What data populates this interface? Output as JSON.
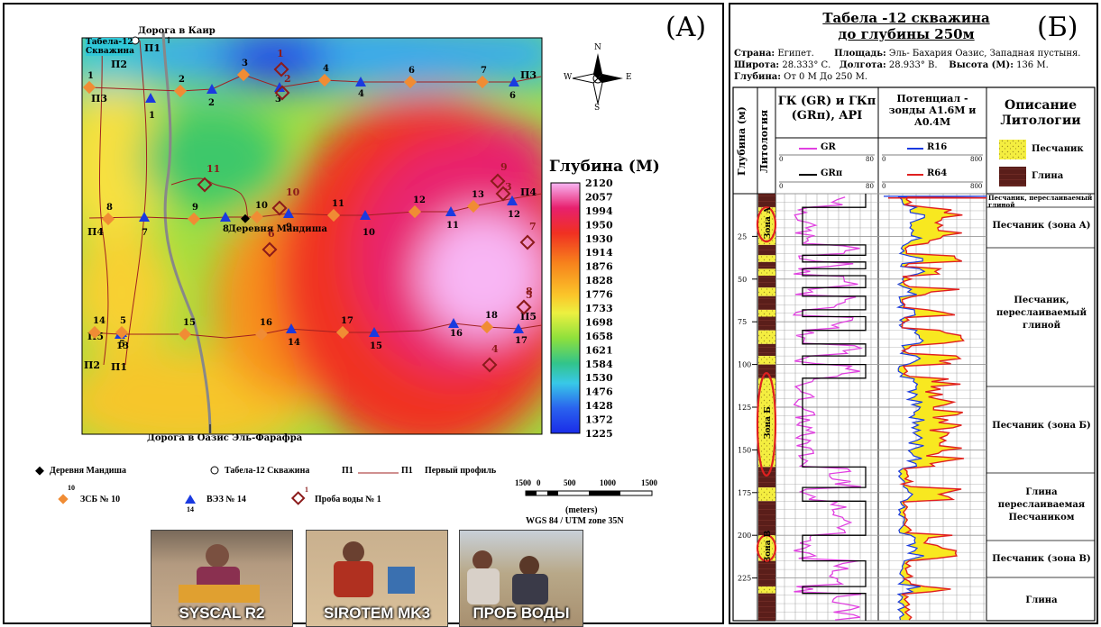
{
  "panel_a": {
    "label": "(A)",
    "road_north": "Дорога в Каир",
    "road_south": "Дорога в Оазис Эль-Фарафра",
    "well_name": "Табела-12 Скважина",
    "village_name": "Деревня Мандиша",
    "compass": {
      "n": "N",
      "s": "S",
      "e": "E",
      "w": "W"
    },
    "colorbar_title": "Глубина (М)",
    "colorbar_ticks": [
      "2120",
      "2057",
      "1994",
      "1950",
      "1930",
      "1914",
      "1876",
      "1828",
      "1776",
      "1733",
      "1698",
      "1658",
      "1621",
      "1584",
      "1530",
      "1476",
      "1428",
      "1372",
      "1225"
    ],
    "colorbar_colors": [
      "#f8b6f4",
      "#f06ad8",
      "#e8206e",
      "#f03022",
      "#f45a1e",
      "#f7821c",
      "#f9a81e",
      "#fbc62a",
      "#f8e03a",
      "#ecf040",
      "#c4ec3a",
      "#8ee03c",
      "#52d24a",
      "#32c48a",
      "#30c4c2",
      "#38c8e8",
      "#42a6f2",
      "#2a62ee",
      "#1a2ce8"
    ],
    "profiles": [
      "П1",
      "П2",
      "П3",
      "П4",
      "П5",
      "П1",
      "П2",
      "П3",
      "П4",
      "П5"
    ],
    "vez_labels": [
      "1",
      "2",
      "3",
      "4",
      "5",
      "6",
      "7",
      "8",
      "9",
      "10",
      "11",
      "12",
      "13",
      "14",
      "15",
      "16",
      "17"
    ],
    "zsb_labels": [
      "1",
      "2",
      "3",
      "4",
      "5",
      "6",
      "7",
      "8",
      "9",
      "10",
      "11",
      "12",
      "13",
      "14",
      "15",
      "16",
      "17",
      "18"
    ],
    "water_labels": [
      "1",
      "2",
      "3",
      "4",
      "5",
      "6",
      "7",
      "8",
      "9",
      "10",
      "11"
    ],
    "legend": {
      "village": "Деревня Мандиша",
      "well": "Табела-12 Скважина",
      "profile_start": "П1",
      "profile_end": "П1",
      "profile_text": "Первый профиль",
      "zsb_num": "10",
      "zsb_text": "ЗСБ № 10",
      "vez_num": "14",
      "vez_text": "ВЭЗ № 14",
      "water_num": "1",
      "water_text": "Проба воды № 1"
    },
    "scale": {
      "ticks": [
        "1500",
        "0",
        "500",
        "1000",
        "1500"
      ],
      "unit": "(meters)",
      "datum": "WGS 84 / UTM zone 35N"
    },
    "photos": [
      "SYSCAL R2",
      "SIROTEM MK3",
      "ПРОБ ВОДЫ"
    ]
  },
  "panel_b": {
    "label": "(Б)",
    "title1": "Табела -12 скважина",
    "title2": "до глубины 250м",
    "info": {
      "country_label": "Страна:",
      "country": "Египет.",
      "area_label": "Площадь:",
      "area": "Эль- Бахария Оазис, Западная пустыня.",
      "lat_label": "Широта:",
      "lat": "28.333° С.",
      "lon_label": "Долгота:",
      "lon": "28.933° В.",
      "height_label": "Высота (М):",
      "height": "136 М.",
      "depth_label": "Глубина:",
      "depth": "От 0 М До 250 М."
    },
    "col_depth": "Глубина (м)",
    "col_litho": "Литология",
    "col_gr_title": "ГК (GR) и ГКп (GRп), API",
    "col_res_title": "Потенциал - зонды А1.6М и А0.4М",
    "col_desc_title": "Описание Литологии",
    "gr_legend": {
      "gr": "GR",
      "grp": "GRп",
      "min": "0",
      "max": "80"
    },
    "res_legend": {
      "r16": "R16",
      "r64": "R64",
      "min": "0",
      "max": "800"
    },
    "lith_legend": {
      "sand": "Песчаник",
      "clay": "Глина"
    },
    "depth_ticks": [
      "25",
      "50",
      "75",
      "100",
      "125",
      "150",
      "175",
      "200",
      "225"
    ],
    "zones": [
      "Зона А",
      "Зона Б",
      "Зона В"
    ],
    "descriptions": [
      "Песчаник, переслаиваемый глиной",
      "Песчаник (зона А)",
      "Песчаник, переслаиваемый глиной",
      "Песчаник (зона Б)",
      "Глина переслаиваемая Песчаником",
      "Песчаник (зона В)",
      "Глина"
    ]
  }
}
